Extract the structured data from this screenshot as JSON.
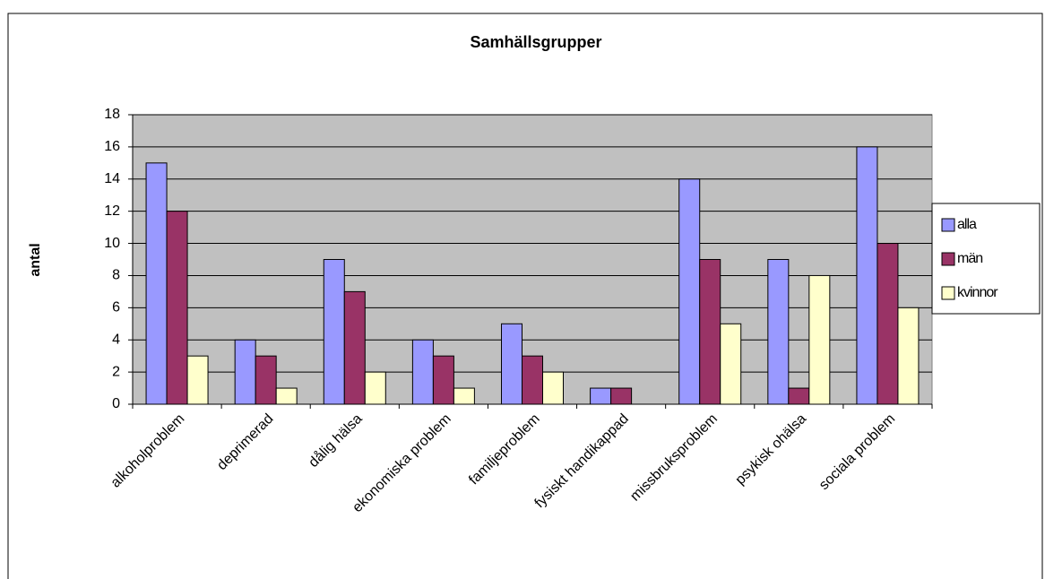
{
  "chart_data": {
    "type": "bar",
    "title": "Samhällsgrupper",
    "y_label": "antal",
    "categories": [
      "alkoholproblem",
      "deprimerad",
      "dålig hälsa",
      "ekonomiska problem",
      "familjeproblem",
      "fysiskt handikappad",
      "missbruksproblem",
      "psykisk ohälsa",
      "sociala problem"
    ],
    "series": [
      {
        "name": "alla",
        "color": "#9999ff",
        "values": [
          15,
          4,
          9,
          4,
          5,
          1,
          14,
          9,
          16
        ]
      },
      {
        "name": "män",
        "color": "#993366",
        "values": [
          12,
          3,
          7,
          3,
          3,
          1,
          9,
          1,
          10
        ]
      },
      {
        "name": "kvinnor",
        "color": "#ffffcc",
        "values": [
          3,
          1,
          2,
          1,
          2,
          0,
          5,
          8,
          6
        ]
      }
    ],
    "ylim": [
      0,
      18
    ],
    "yticks": [
      0,
      2,
      4,
      6,
      8,
      10,
      12,
      14,
      16,
      18
    ],
    "grid": true,
    "legend": "right"
  }
}
